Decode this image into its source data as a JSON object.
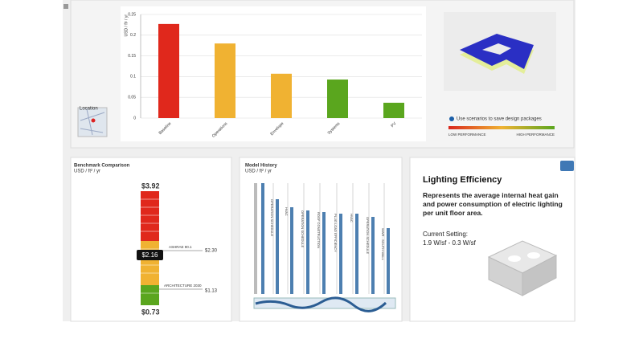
{
  "chart_data": {
    "type": "bar",
    "y_label": "USD / ft² / yr",
    "categories": [
      "Baseline",
      "Operations",
      "Envelope",
      "Systems",
      "PV"
    ],
    "values": [
      0.227,
      0.18,
      0.107,
      0.093,
      0.037
    ],
    "colors": [
      "#e0281c",
      "#f0b232",
      "#f0b232",
      "#5aa61e",
      "#5aa61e"
    ],
    "ylim": [
      0,
      0.25
    ],
    "yticks": [
      0,
      0.05,
      0.1,
      0.15,
      0.2,
      0.25
    ],
    "grid": true
  },
  "location": {
    "label": "Location"
  },
  "performance_legend": {
    "hint": "Use scenarios to save design packages",
    "low": "LOW PERFORMANCE",
    "high": "HIGH PERFORMANCE"
  },
  "benchmark": {
    "title": "Benchmark Comparison",
    "unit": "USD / ft² / yr",
    "max": "$3.92",
    "min": "$0.73",
    "current": "$2.16",
    "references": [
      {
        "name": "ASHRAE 90.1",
        "value": "$2.30"
      },
      {
        "name": "ARCHITECTURE 2030",
        "value": "$1.13"
      }
    ]
  },
  "model_history": {
    "title": "Model History",
    "unit": "USD / ft² / yr",
    "steps": [
      "OPERATION SCHEDULE",
      "HVAC",
      "OPERATION SCHEDULE",
      "ROOF CONSTRUCTION",
      "PLUG LOAD EFFICIENCY",
      "HVAC",
      "OPERATION SCHEDULE",
      "WWR - SOUTH WALL"
    ]
  },
  "lighting": {
    "title": "Lighting Efficiency",
    "description": "Represents the average internal heat gain and power consumption of electric lighting per unit floor area.",
    "setting_label": "Current Setting:",
    "setting_value": "1.9 W/sf - 0.3 W/sf"
  }
}
